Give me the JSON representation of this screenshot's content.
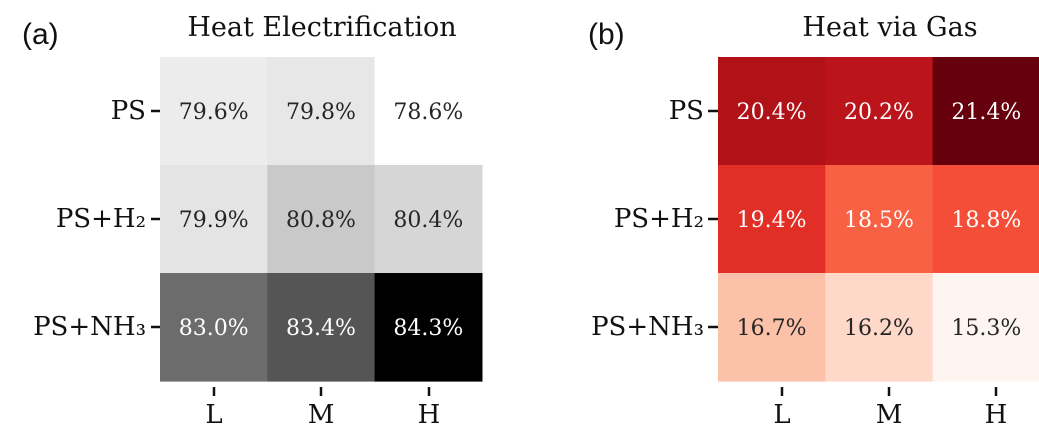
{
  "chart_data": [
    {
      "type": "heatmap",
      "panel_label": "(a)",
      "title": "Heat Electrification",
      "rows": [
        "PS",
        "PS+H₂",
        "PS+NH₃"
      ],
      "columns": [
        "L",
        "M",
        "H"
      ],
      "values": [
        [
          79.6,
          79.8,
          78.6
        ],
        [
          79.9,
          80.8,
          80.4
        ],
        [
          83.0,
          83.4,
          84.3
        ]
      ],
      "cell_labels": [
        [
          "79.6%",
          "79.8%",
          "78.6%"
        ],
        [
          "79.9%",
          "80.8%",
          "80.4%"
        ],
        [
          "83.0%",
          "83.4%",
          "84.3%"
        ]
      ],
      "colormap": "Greys",
      "color_low": "#ffffff",
      "color_high": "#000000"
    },
    {
      "type": "heatmap",
      "panel_label": "(b)",
      "title": "Heat via Gas",
      "rows": [
        "PS",
        "PS+H₂",
        "PS+NH₃"
      ],
      "columns": [
        "L",
        "M",
        "H"
      ],
      "values": [
        [
          20.4,
          20.2,
          21.4
        ],
        [
          19.4,
          18.5,
          18.8
        ],
        [
          16.7,
          16.2,
          15.3
        ]
      ],
      "cell_labels": [
        [
          "20.4%",
          "20.2%",
          "21.4%"
        ],
        [
          "19.4%",
          "18.5%",
          "18.8%"
        ],
        [
          "16.7%",
          "16.2%",
          "15.3%"
        ]
      ],
      "colormap": "Reds",
      "color_low": "#fff5f0",
      "color_high": "#67000d"
    }
  ]
}
